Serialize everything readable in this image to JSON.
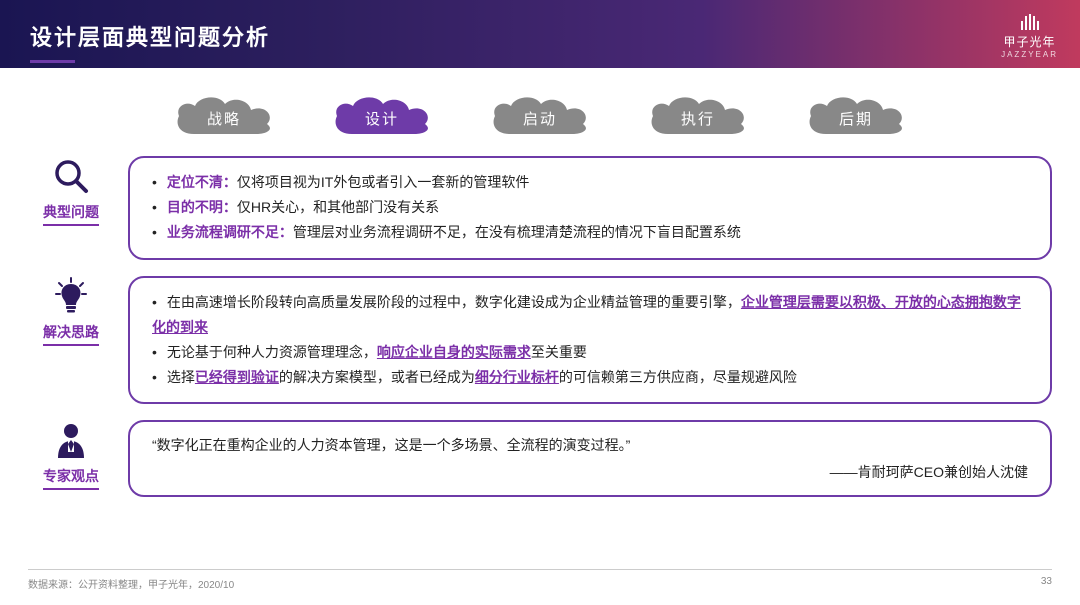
{
  "colors": {
    "accent": "#6e3ba8",
    "accent_text": "#7b2fa8",
    "icon": "#2d1b5e",
    "tab_inactive": "#888888",
    "tab_active": "#6e3ba8",
    "header_gradient": [
      "#1a1552",
      "#2d1f5e",
      "#4a2875",
      "#c03a5e"
    ],
    "text": "#222222",
    "footer_text": "#888888"
  },
  "typography": {
    "title_fontsize": 22,
    "body_fontsize": 14,
    "label_fontsize": 14,
    "footer_fontsize": 10
  },
  "header": {
    "title": "设计层面典型问题分析",
    "logo_cn": "甲子光年",
    "logo_en": "JAZZYEAR"
  },
  "tabs": {
    "active_index": 1,
    "items": [
      "战略",
      "设计",
      "启动",
      "执行",
      "后期"
    ]
  },
  "sections": [
    {
      "icon": "magnifier",
      "label": "典型问题",
      "bullets": [
        {
          "prefix": "定位不清：",
          "prefix_style": "hl",
          "text": "仅将项目视为IT外包或者引入一套新的管理软件"
        },
        {
          "prefix": "目的不明：",
          "prefix_style": "hl",
          "text": "仅HR关心，和其他部门没有关系"
        },
        {
          "prefix": "业务流程调研不足：",
          "prefix_style": "hl",
          "text": "管理层对业务流程调研不足，在没有梳理清楚流程的情况下盲目配置系统"
        }
      ]
    },
    {
      "icon": "lightbulb",
      "label": "解决思路",
      "bullets": [
        {
          "text_before": "在由高速增长阶段转向高质量发展阶段的过程中，数字化建设成为企业精益管理的重要引擎，",
          "hl": "企业管理层需要以积极、开放的心态拥抱数字化的到来",
          "hl_style": "hl-u"
        },
        {
          "text_before": "无论基于何种人力资源管理理念，",
          "hl": "响应企业自身的实际需求",
          "hl_style": "hl-u",
          "text_after": "至关重要"
        },
        {
          "text_before": "选择",
          "hl": "已经得到验证",
          "hl_style": "hl-u",
          "text_mid": "的解决方案模型，或者已经成为",
          "hl2": "细分行业标杆",
          "hl2_style": "hl-u",
          "text_after": "的可信赖第三方供应商，尽量规避风险"
        }
      ]
    },
    {
      "icon": "person",
      "label": "专家观点",
      "quote": "“数字化正在重构企业的人力资本管理，这是一个多场景、全流程的演变过程。”",
      "attribution": "——肯耐珂萨CEO兼创始人沈健"
    }
  ],
  "footer": {
    "source": "数据来源：公开资料整理，甲子光年，2020/10",
    "page": "33"
  }
}
